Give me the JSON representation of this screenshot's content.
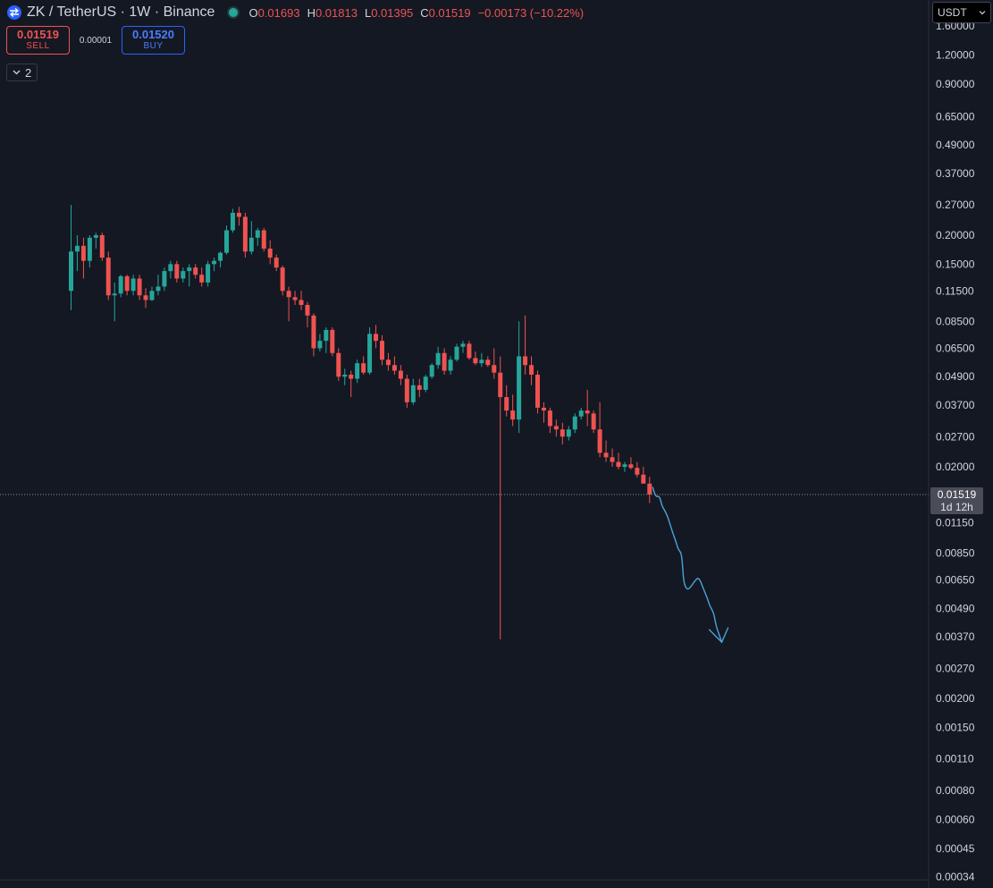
{
  "header": {
    "symbol_title": "ZK / TetherUS · 1W · Binance",
    "ohlc": [
      {
        "key": "O",
        "value": "0.01693"
      },
      {
        "key": "H",
        "value": "0.01813"
      },
      {
        "key": "L",
        "value": "0.01395"
      },
      {
        "key": "C",
        "value": "0.01519"
      },
      {
        "key": "",
        "value": "−0.00173 (−10.22%)"
      }
    ]
  },
  "trade": {
    "sell_price": "0.01519",
    "sell_label": "SELL",
    "spread": "0.00001",
    "buy_price": "0.01520",
    "buy_label": "BUY"
  },
  "indicators": {
    "count": "2"
  },
  "currency": {
    "selected": "USDT"
  },
  "last_price": {
    "value": "0.01519",
    "countdown": "1d 12h"
  },
  "colors": {
    "background": "#141823",
    "up": "#26a69a",
    "down": "#ef5350",
    "drawing": "#4aa3d8",
    "axis_text": "#d1d4dc",
    "last_price_bg": "#4a4d57"
  },
  "chart_data": {
    "type": "candlestick",
    "scale": "log",
    "y_axis_ticks": [
      "1.60000",
      "1.20000",
      "0.90000",
      "0.65000",
      "0.49000",
      "0.37000",
      "0.27000",
      "0.20000",
      "0.15000",
      "0.11500",
      "0.08500",
      "0.06500",
      "0.04900",
      "0.03700",
      "0.02700",
      "0.02000",
      "0.01519",
      "0.01150",
      "0.00850",
      "0.00650",
      "0.00490",
      "0.00370",
      "0.00270",
      "0.00200",
      "0.00150",
      "0.00110",
      "0.00080",
      "0.00060",
      "0.00045",
      "0.00034"
    ],
    "last_price": 0.01519,
    "candles": [
      {
        "o": 0.115,
        "h": 0.27,
        "l": 0.095,
        "c": 0.17
      },
      {
        "o": 0.17,
        "h": 0.2,
        "l": 0.14,
        "c": 0.18
      },
      {
        "o": 0.18,
        "h": 0.195,
        "l": 0.13,
        "c": 0.155
      },
      {
        "o": 0.155,
        "h": 0.2,
        "l": 0.145,
        "c": 0.195
      },
      {
        "o": 0.195,
        "h": 0.205,
        "l": 0.175,
        "c": 0.2
      },
      {
        "o": 0.2,
        "h": 0.205,
        "l": 0.155,
        "c": 0.16
      },
      {
        "o": 0.16,
        "h": 0.17,
        "l": 0.105,
        "c": 0.11
      },
      {
        "o": 0.11,
        "h": 0.125,
        "l": 0.085,
        "c": 0.112
      },
      {
        "o": 0.112,
        "h": 0.135,
        "l": 0.108,
        "c": 0.133
      },
      {
        "o": 0.133,
        "h": 0.135,
        "l": 0.11,
        "c": 0.115
      },
      {
        "o": 0.115,
        "h": 0.135,
        "l": 0.11,
        "c": 0.13
      },
      {
        "o": 0.13,
        "h": 0.135,
        "l": 0.105,
        "c": 0.11
      },
      {
        "o": 0.11,
        "h": 0.118,
        "l": 0.097,
        "c": 0.105
      },
      {
        "o": 0.105,
        "h": 0.12,
        "l": 0.104,
        "c": 0.115
      },
      {
        "o": 0.115,
        "h": 0.135,
        "l": 0.11,
        "c": 0.12
      },
      {
        "o": 0.12,
        "h": 0.145,
        "l": 0.115,
        "c": 0.14
      },
      {
        "o": 0.14,
        "h": 0.155,
        "l": 0.13,
        "c": 0.15
      },
      {
        "o": 0.15,
        "h": 0.155,
        "l": 0.125,
        "c": 0.13
      },
      {
        "o": 0.13,
        "h": 0.145,
        "l": 0.125,
        "c": 0.14
      },
      {
        "o": 0.14,
        "h": 0.15,
        "l": 0.12,
        "c": 0.145
      },
      {
        "o": 0.145,
        "h": 0.15,
        "l": 0.13,
        "c": 0.135
      },
      {
        "o": 0.135,
        "h": 0.145,
        "l": 0.12,
        "c": 0.125
      },
      {
        "o": 0.125,
        "h": 0.155,
        "l": 0.12,
        "c": 0.15
      },
      {
        "o": 0.15,
        "h": 0.16,
        "l": 0.14,
        "c": 0.155
      },
      {
        "o": 0.155,
        "h": 0.17,
        "l": 0.145,
        "c": 0.168
      },
      {
        "o": 0.168,
        "h": 0.22,
        "l": 0.165,
        "c": 0.21
      },
      {
        "o": 0.21,
        "h": 0.26,
        "l": 0.205,
        "c": 0.25
      },
      {
        "o": 0.25,
        "h": 0.265,
        "l": 0.22,
        "c": 0.24
      },
      {
        "o": 0.24,
        "h": 0.25,
        "l": 0.16,
        "c": 0.17
      },
      {
        "o": 0.17,
        "h": 0.23,
        "l": 0.165,
        "c": 0.195
      },
      {
        "o": 0.195,
        "h": 0.215,
        "l": 0.18,
        "c": 0.21
      },
      {
        "o": 0.21,
        "h": 0.215,
        "l": 0.17,
        "c": 0.175
      },
      {
        "o": 0.175,
        "h": 0.19,
        "l": 0.15,
        "c": 0.16
      },
      {
        "o": 0.16,
        "h": 0.165,
        "l": 0.14,
        "c": 0.145
      },
      {
        "o": 0.145,
        "h": 0.148,
        "l": 0.11,
        "c": 0.115
      },
      {
        "o": 0.115,
        "h": 0.12,
        "l": 0.085,
        "c": 0.108
      },
      {
        "o": 0.108,
        "h": 0.115,
        "l": 0.1,
        "c": 0.105
      },
      {
        "o": 0.105,
        "h": 0.115,
        "l": 0.095,
        "c": 0.1
      },
      {
        "o": 0.1,
        "h": 0.103,
        "l": 0.08,
        "c": 0.09
      },
      {
        "o": 0.09,
        "h": 0.092,
        "l": 0.06,
        "c": 0.065
      },
      {
        "o": 0.065,
        "h": 0.075,
        "l": 0.063,
        "c": 0.07
      },
      {
        "o": 0.07,
        "h": 0.08,
        "l": 0.062,
        "c": 0.078
      },
      {
        "o": 0.078,
        "h": 0.08,
        "l": 0.06,
        "c": 0.062
      },
      {
        "o": 0.062,
        "h": 0.065,
        "l": 0.047,
        "c": 0.049
      },
      {
        "o": 0.049,
        "h": 0.053,
        "l": 0.045,
        "c": 0.05
      },
      {
        "o": 0.05,
        "h": 0.052,
        "l": 0.04,
        "c": 0.048
      },
      {
        "o": 0.048,
        "h": 0.058,
        "l": 0.046,
        "c": 0.056
      },
      {
        "o": 0.056,
        "h": 0.06,
        "l": 0.05,
        "c": 0.051
      },
      {
        "o": 0.051,
        "h": 0.08,
        "l": 0.05,
        "c": 0.075
      },
      {
        "o": 0.075,
        "h": 0.082,
        "l": 0.065,
        "c": 0.07
      },
      {
        "o": 0.07,
        "h": 0.074,
        "l": 0.055,
        "c": 0.058
      },
      {
        "o": 0.058,
        "h": 0.062,
        "l": 0.052,
        "c": 0.055
      },
      {
        "o": 0.055,
        "h": 0.06,
        "l": 0.05,
        "c": 0.052
      },
      {
        "o": 0.052,
        "h": 0.055,
        "l": 0.045,
        "c": 0.048
      },
      {
        "o": 0.048,
        "h": 0.05,
        "l": 0.036,
        "c": 0.038
      },
      {
        "o": 0.038,
        "h": 0.048,
        "l": 0.037,
        "c": 0.045
      },
      {
        "o": 0.045,
        "h": 0.048,
        "l": 0.04,
        "c": 0.043
      },
      {
        "o": 0.043,
        "h": 0.05,
        "l": 0.042,
        "c": 0.049
      },
      {
        "o": 0.049,
        "h": 0.056,
        "l": 0.048,
        "c": 0.055
      },
      {
        "o": 0.055,
        "h": 0.066,
        "l": 0.053,
        "c": 0.062
      },
      {
        "o": 0.062,
        "h": 0.065,
        "l": 0.05,
        "c": 0.052
      },
      {
        "o": 0.052,
        "h": 0.06,
        "l": 0.05,
        "c": 0.058
      },
      {
        "o": 0.058,
        "h": 0.068,
        "l": 0.057,
        "c": 0.066
      },
      {
        "o": 0.066,
        "h": 0.07,
        "l": 0.062,
        "c": 0.068
      },
      {
        "o": 0.068,
        "h": 0.07,
        "l": 0.058,
        "c": 0.059
      },
      {
        "o": 0.059,
        "h": 0.063,
        "l": 0.055,
        "c": 0.056
      },
      {
        "o": 0.056,
        "h": 0.062,
        "l": 0.054,
        "c": 0.058
      },
      {
        "o": 0.058,
        "h": 0.06,
        "l": 0.054,
        "c": 0.055
      },
      {
        "o": 0.055,
        "h": 0.065,
        "l": 0.048,
        "c": 0.051
      },
      {
        "o": 0.051,
        "h": 0.06,
        "l": 0.0036,
        "c": 0.04
      },
      {
        "o": 0.04,
        "h": 0.045,
        "l": 0.033,
        "c": 0.035
      },
      {
        "o": 0.035,
        "h": 0.041,
        "l": 0.03,
        "c": 0.032
      },
      {
        "o": 0.032,
        "h": 0.085,
        "l": 0.028,
        "c": 0.06
      },
      {
        "o": 0.06,
        "h": 0.09,
        "l": 0.05,
        "c": 0.055
      },
      {
        "o": 0.055,
        "h": 0.06,
        "l": 0.045,
        "c": 0.05
      },
      {
        "o": 0.05,
        "h": 0.052,
        "l": 0.034,
        "c": 0.036
      },
      {
        "o": 0.036,
        "h": 0.038,
        "l": 0.031,
        "c": 0.035
      },
      {
        "o": 0.035,
        "h": 0.036,
        "l": 0.028,
        "c": 0.03
      },
      {
        "o": 0.03,
        "h": 0.032,
        "l": 0.027,
        "c": 0.029
      },
      {
        "o": 0.029,
        "h": 0.031,
        "l": 0.025,
        "c": 0.027
      },
      {
        "o": 0.027,
        "h": 0.03,
        "l": 0.026,
        "c": 0.029
      },
      {
        "o": 0.029,
        "h": 0.034,
        "l": 0.028,
        "c": 0.033
      },
      {
        "o": 0.033,
        "h": 0.036,
        "l": 0.032,
        "c": 0.035
      },
      {
        "o": 0.035,
        "h": 0.043,
        "l": 0.03,
        "c": 0.034
      },
      {
        "o": 0.034,
        "h": 0.035,
        "l": 0.028,
        "c": 0.029
      },
      {
        "o": 0.029,
        "h": 0.038,
        "l": 0.022,
        "c": 0.023
      },
      {
        "o": 0.023,
        "h": 0.026,
        "l": 0.021,
        "c": 0.022
      },
      {
        "o": 0.022,
        "h": 0.024,
        "l": 0.02,
        "c": 0.021
      },
      {
        "o": 0.021,
        "h": 0.023,
        "l": 0.0195,
        "c": 0.02
      },
      {
        "o": 0.02,
        "h": 0.021,
        "l": 0.019,
        "c": 0.0205
      },
      {
        "o": 0.0205,
        "h": 0.022,
        "l": 0.0195,
        "c": 0.0198
      },
      {
        "o": 0.0198,
        "h": 0.021,
        "l": 0.018,
        "c": 0.0185
      },
      {
        "o": 0.0185,
        "h": 0.02,
        "l": 0.017,
        "c": 0.01693
      },
      {
        "o": 0.01693,
        "h": 0.01813,
        "l": 0.01395,
        "c": 0.01519
      }
    ],
    "drawing_path": [
      {
        "bar": 93.5,
        "price": 0.0163
      },
      {
        "bar": 94.0,
        "price": 0.0148
      },
      {
        "bar": 94.6,
        "price": 0.015
      },
      {
        "bar": 95.0,
        "price": 0.0135
      },
      {
        "bar": 95.5,
        "price": 0.0129
      },
      {
        "bar": 96.0,
        "price": 0.012
      },
      {
        "bar": 96.6,
        "price": 0.0106
      },
      {
        "bar": 97.3,
        "price": 0.0094
      },
      {
        "bar": 97.6,
        "price": 0.0088
      },
      {
        "bar": 98.1,
        "price": 0.0085
      },
      {
        "bar": 98.3,
        "price": 0.0075
      },
      {
        "bar": 98.5,
        "price": 0.0063
      },
      {
        "bar": 99.0,
        "price": 0.0059
      },
      {
        "bar": 99.5,
        "price": 0.006
      },
      {
        "bar": 100.2,
        "price": 0.0064
      },
      {
        "bar": 100.9,
        "price": 0.0067
      },
      {
        "bar": 101.6,
        "price": 0.006
      },
      {
        "bar": 102.3,
        "price": 0.0054
      },
      {
        "bar": 102.7,
        "price": 0.005
      },
      {
        "bar": 103.3,
        "price": 0.0047
      },
      {
        "bar": 103.7,
        "price": 0.0041
      },
      {
        "bar": 104.3,
        "price": 0.0037
      },
      {
        "bar": 104.6,
        "price": 0.0035
      }
    ]
  }
}
